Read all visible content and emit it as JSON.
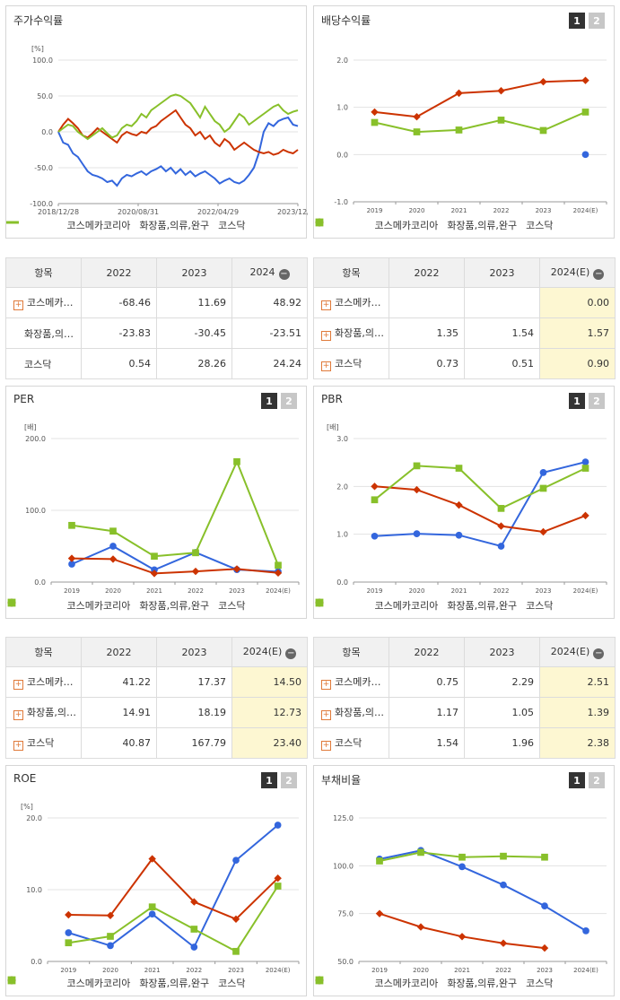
{
  "colors": {
    "series1": "#3366dd",
    "series2": "#cc3300",
    "series3": "#88c02a"
  },
  "legend_names": [
    "코스메카코리아",
    "화장품,의류,완구",
    "코스닥"
  ],
  "pager": [
    "1",
    "2"
  ],
  "charts": {
    "price": {
      "title": "주가수익률",
      "unit": "[%]",
      "chart_data": {
        "type": "line",
        "x_ticks": [
          "2018/12/28",
          "2020/08/31",
          "2022/04/29",
          "2023/12/28"
        ],
        "y_ticks": [
          "100.0",
          "50.0",
          "0.0",
          "-50.0",
          "-100.0"
        ],
        "ylim": [
          -100,
          100
        ],
        "series": [
          {
            "name": "코스메카코리아",
            "values": [
              0,
              -15,
              -18,
              -30,
              -35,
              -45,
              -55,
              -60,
              -62,
              -65,
              -70,
              -68,
              -75,
              -65,
              -60,
              -62,
              -58,
              -55,
              -60,
              -55,
              -52,
              -48,
              -55,
              -50,
              -58,
              -52,
              -60,
              -55,
              -62,
              -58,
              -55,
              -60,
              -65,
              -72,
              -68,
              -65,
              -70,
              -72,
              -68,
              -60,
              -50,
              -30,
              0,
              12,
              8,
              15,
              18,
              20,
              10,
              8
            ]
          },
          {
            "name": "화장품,의류,완구",
            "values": [
              0,
              10,
              18,
              12,
              5,
              -5,
              -8,
              -2,
              5,
              0,
              -5,
              -10,
              -15,
              -5,
              0,
              -3,
              -5,
              0,
              -2,
              5,
              8,
              15,
              20,
              25,
              30,
              20,
              10,
              5,
              -5,
              0,
              -10,
              -5,
              -15,
              -20,
              -10,
              -15,
              -25,
              -20,
              -15,
              -20,
              -25,
              -28,
              -30,
              -28,
              -32,
              -30,
              -25,
              -28,
              -30,
              -25
            ]
          },
          {
            "name": "코스닥",
            "values": [
              0,
              5,
              10,
              8,
              0,
              -5,
              -10,
              -5,
              0,
              5,
              -2,
              -8,
              -5,
              5,
              10,
              8,
              15,
              25,
              20,
              30,
              35,
              40,
              45,
              50,
              52,
              50,
              45,
              40,
              30,
              20,
              35,
              25,
              15,
              10,
              0,
              5,
              15,
              25,
              20,
              10,
              15,
              20,
              25,
              30,
              35,
              38,
              30,
              25,
              28,
              30
            ]
          }
        ]
      }
    },
    "dividend": {
      "title": "배당수익률",
      "chart_data": {
        "type": "line",
        "categories": [
          "2019",
          "2020",
          "2021",
          "2022",
          "2023",
          "2024(E)"
        ],
        "y_ticks": [
          "2.0",
          "1.0",
          "0.0",
          "-1.0"
        ],
        "ylim": [
          -1,
          2
        ],
        "series": [
          {
            "name": "코스메카코리아",
            "values": [
              null,
              null,
              null,
              null,
              null,
              0.0
            ]
          },
          {
            "name": "화장품,의류,완구",
            "values": [
              0.9,
              0.8,
              1.3,
              1.35,
              1.54,
              1.57
            ]
          },
          {
            "name": "코스닥",
            "values": [
              0.68,
              0.48,
              0.52,
              0.73,
              0.51,
              0.9
            ]
          }
        ]
      }
    },
    "per": {
      "title": "PER",
      "unit": "[배]",
      "chart_data": {
        "type": "line",
        "categories": [
          "2019",
          "2020",
          "2021",
          "2022",
          "2023",
          "2024(E)"
        ],
        "y_ticks": [
          "200.0",
          "100.0",
          "0.0"
        ],
        "ylim": [
          0,
          200
        ],
        "series": [
          {
            "name": "코스메카코리아",
            "values": [
              25,
              50,
              17,
              41.22,
              17.37,
              14.5
            ]
          },
          {
            "name": "화장품,의류,완구",
            "values": [
              33,
              32,
              12,
              14.91,
              18.19,
              12.73
            ]
          },
          {
            "name": "코스닥",
            "values": [
              79,
              71,
              36,
              40.87,
              167.79,
              23.4
            ]
          }
        ]
      }
    },
    "pbr": {
      "title": "PBR",
      "unit": "[배]",
      "chart_data": {
        "type": "line",
        "categories": [
          "2019",
          "2020",
          "2021",
          "2022",
          "2023",
          "2024(E)"
        ],
        "y_ticks": [
          "3.0",
          "2.0",
          "1.0",
          "0.0"
        ],
        "ylim": [
          0,
          3
        ],
        "series": [
          {
            "name": "코스메카코리아",
            "values": [
              0.96,
              1.01,
              0.98,
              0.75,
              2.29,
              2.51
            ]
          },
          {
            "name": "화장품,의류,완구",
            "values": [
              2.0,
              1.93,
              1.61,
              1.17,
              1.05,
              1.39
            ]
          },
          {
            "name": "코스닥",
            "values": [
              1.72,
              2.43,
              2.38,
              1.54,
              1.96,
              2.38
            ]
          }
        ]
      }
    },
    "roe": {
      "title": "ROE",
      "unit": "[%]",
      "chart_data": {
        "type": "line",
        "categories": [
          "2019",
          "2020",
          "2021",
          "2022",
          "2023",
          "2024(E)"
        ],
        "y_ticks": [
          "20.0",
          "10.0",
          "0.0"
        ],
        "ylim": [
          0,
          20
        ],
        "series": [
          {
            "name": "코스메카코리아",
            "values": [
              4.0,
              2.2,
              6.6,
              2.0,
              14.1,
              19.0
            ]
          },
          {
            "name": "화장품,의류,완구",
            "values": [
              6.5,
              6.4,
              14.3,
              8.3,
              5.9,
              11.6
            ]
          },
          {
            "name": "코스닥",
            "values": [
              2.6,
              3.5,
              7.6,
              4.5,
              1.4,
              10.5
            ]
          }
        ]
      }
    },
    "debt": {
      "title": "부채비율",
      "chart_data": {
        "type": "line",
        "categories": [
          "2019",
          "2020",
          "2021",
          "2022",
          "2023",
          "2024(E)"
        ],
        "y_ticks": [
          "125.0",
          "100.0",
          "75.0",
          "50.0"
        ],
        "ylim": [
          50,
          125
        ],
        "series": [
          {
            "name": "코스메카코리아",
            "values": [
              103.5,
              108,
              99.5,
              90,
              79,
              66
            ]
          },
          {
            "name": "화장품,의류,완구",
            "values": [
              75,
              68,
              63,
              59.5,
              57,
              null
            ]
          },
          {
            "name": "코스닥",
            "values": [
              102.5,
              107,
              104.5,
              105,
              104.5,
              null
            ]
          }
        ]
      }
    }
  },
  "tables": {
    "price": {
      "headers": [
        "항목",
        "2022",
        "2023",
        "2024"
      ],
      "rows": [
        {
          "name": "코스메카…",
          "plus": true,
          "values": [
            "-68.46",
            "11.69",
            "48.92"
          ]
        },
        {
          "name": "화장품,의…",
          "plus": false,
          "values": [
            "-23.83",
            "-30.45",
            "-23.51"
          ]
        },
        {
          "name": "코스닥",
          "plus": false,
          "values": [
            "0.54",
            "28.26",
            "24.24"
          ]
        }
      ]
    },
    "dividend": {
      "headers": [
        "항목",
        "2022",
        "2023",
        "2024(E)"
      ],
      "rows": [
        {
          "name": "코스메카…",
          "plus": true,
          "values": [
            "",
            "",
            "0.00"
          ]
        },
        {
          "name": "화장품,의…",
          "plus": true,
          "values": [
            "1.35",
            "1.54",
            "1.57"
          ]
        },
        {
          "name": "코스닥",
          "plus": true,
          "values": [
            "0.73",
            "0.51",
            "0.90"
          ]
        }
      ]
    },
    "per": {
      "headers": [
        "항목",
        "2022",
        "2023",
        "2024(E)"
      ],
      "rows": [
        {
          "name": "코스메카…",
          "plus": true,
          "values": [
            "41.22",
            "17.37",
            "14.50"
          ]
        },
        {
          "name": "화장품,의…",
          "plus": true,
          "values": [
            "14.91",
            "18.19",
            "12.73"
          ]
        },
        {
          "name": "코스닥",
          "plus": true,
          "values": [
            "40.87",
            "167.79",
            "23.40"
          ]
        }
      ]
    },
    "pbr": {
      "headers": [
        "항목",
        "2022",
        "2023",
        "2024(E)"
      ],
      "rows": [
        {
          "name": "코스메카…",
          "plus": true,
          "values": [
            "0.75",
            "2.29",
            "2.51"
          ]
        },
        {
          "name": "화장품,의…",
          "plus": true,
          "values": [
            "1.17",
            "1.05",
            "1.39"
          ]
        },
        {
          "name": "코스닥",
          "plus": true,
          "values": [
            "1.54",
            "1.96",
            "2.38"
          ]
        }
      ]
    }
  }
}
